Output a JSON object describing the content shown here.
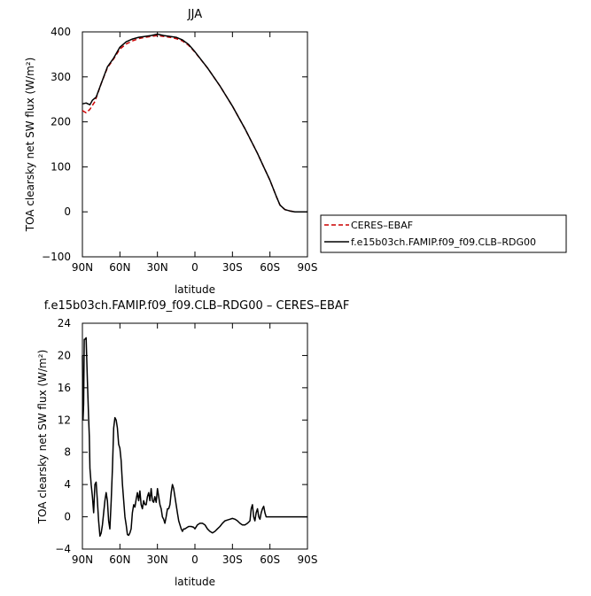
{
  "chart_data": [
    {
      "type": "line",
      "title": "JJA",
      "xlabel": "latitude",
      "ylabel": "TOA clearsky net SW flux (W/m²)",
      "xlim": [
        90,
        -90
      ],
      "ylim": [
        -100,
        400
      ],
      "x_ticks": [
        {
          "value": 90,
          "label": "90N"
        },
        {
          "value": 60,
          "label": "60N"
        },
        {
          "value": 30,
          "label": "30N"
        },
        {
          "value": 0,
          "label": "0"
        },
        {
          "value": -30,
          "label": "30S"
        },
        {
          "value": -60,
          "label": "60S"
        },
        {
          "value": -90,
          "label": "90S"
        }
      ],
      "y_ticks": [
        {
          "value": 400,
          "label": "400"
        },
        {
          "value": 300,
          "label": "300"
        },
        {
          "value": 200,
          "label": "200"
        },
        {
          "value": 100,
          "label": "100"
        },
        {
          "value": 0,
          "label": "0"
        },
        {
          "value": -100,
          "label": "−100"
        }
      ],
      "legend": {
        "placement": "right"
      },
      "series": [
        {
          "name": "CERES–EBAF",
          "color": "#cc0000",
          "dash": true,
          "points": [
            [
              90,
              225
            ],
            [
              87,
              220
            ],
            [
              84,
              228
            ],
            [
              80,
              245
            ],
            [
              75,
              285
            ],
            [
              70,
              320
            ],
            [
              65,
              340
            ],
            [
              60,
              362
            ],
            [
              55,
              373
            ],
            [
              50,
              380
            ],
            [
              45,
              385
            ],
            [
              40,
              388
            ],
            [
              35,
              390
            ],
            [
              30,
              392
            ],
            [
              25,
              390
            ],
            [
              20,
              388
            ],
            [
              15,
              385
            ],
            [
              10,
              380
            ],
            [
              5,
              370
            ],
            [
              0,
              355
            ],
            [
              -10,
              320
            ],
            [
              -20,
              280
            ],
            [
              -30,
              235
            ],
            [
              -40,
              185
            ],
            [
              -50,
              130
            ],
            [
              -55,
              100
            ],
            [
              -60,
              70
            ],
            [
              -65,
              35
            ],
            [
              -68,
              15
            ],
            [
              -72,
              5
            ],
            [
              -76,
              2
            ],
            [
              -80,
              0
            ],
            [
              -90,
              0
            ]
          ]
        },
        {
          "name": "f.e15b03ch.FAMIP.f09_f09.CLB–RDG00",
          "color": "#000000",
          "dash": false,
          "points": [
            [
              90,
              240
            ],
            [
              87,
              242
            ],
            [
              84,
              238
            ],
            [
              82,
              248
            ],
            [
              79,
              255
            ],
            [
              75,
              285
            ],
            [
              70,
              322
            ],
            [
              65,
              342
            ],
            [
              60,
              366
            ],
            [
              55,
              378
            ],
            [
              50,
              384
            ],
            [
              45,
              388
            ],
            [
              40,
              390
            ],
            [
              35,
              392
            ],
            [
              30,
              395
            ],
            [
              25,
              392
            ],
            [
              20,
              390
            ],
            [
              15,
              388
            ],
            [
              10,
              382
            ],
            [
              5,
              372
            ],
            [
              0,
              356
            ],
            [
              -10,
              320
            ],
            [
              -20,
              280
            ],
            [
              -30,
              235
            ],
            [
              -40,
              185
            ],
            [
              -50,
              130
            ],
            [
              -55,
              100
            ],
            [
              -60,
              70
            ],
            [
              -65,
              35
            ],
            [
              -68,
              15
            ],
            [
              -72,
              5
            ],
            [
              -76,
              2
            ],
            [
              -80,
              0
            ],
            [
              -90,
              0
            ]
          ]
        }
      ]
    },
    {
      "type": "line",
      "title": "f.e15b03ch.FAMIP.f09_f09.CLB–RDG00 – CERES–EBAF",
      "xlabel": "latitude",
      "ylabel": "TOA clearsky net SW flux (W/m²)",
      "xlim": [
        90,
        -90
      ],
      "ylim": [
        -4,
        24
      ],
      "x_ticks": [
        {
          "value": 90,
          "label": "90N"
        },
        {
          "value": 60,
          "label": "60N"
        },
        {
          "value": 30,
          "label": "30N"
        },
        {
          "value": 0,
          "label": "0"
        },
        {
          "value": -30,
          "label": "30S"
        },
        {
          "value": -60,
          "label": "60S"
        },
        {
          "value": -90,
          "label": "90S"
        }
      ],
      "y_ticks": [
        {
          "value": 24,
          "label": "24"
        },
        {
          "value": 20,
          "label": "20"
        },
        {
          "value": 16,
          "label": "16"
        },
        {
          "value": 12,
          "label": "12"
        },
        {
          "value": 8,
          "label": "8"
        },
        {
          "value": 4,
          "label": "4"
        },
        {
          "value": 0,
          "label": "0"
        },
        {
          "value": -4,
          "label": "−4"
        }
      ],
      "series": [
        {
          "color": "#000000",
          "points": [
            [
              90,
              20
            ],
            [
              89.5,
              12
            ],
            [
              89,
              14
            ],
            [
              88.5,
              22
            ],
            [
              88,
              22
            ],
            [
              87,
              22.2
            ],
            [
              86,
              17
            ],
            [
              85,
              12
            ],
            [
              84.5,
              10
            ],
            [
              84,
              6
            ],
            [
              83,
              4
            ],
            [
              82,
              2.5
            ],
            [
              81,
              0.5
            ],
            [
              80,
              4
            ],
            [
              79,
              4.3
            ],
            [
              78,
              2
            ],
            [
              77,
              -0.5
            ],
            [
              76,
              -2.4
            ],
            [
              75,
              -2
            ],
            [
              74,
              -1
            ],
            [
              73,
              0.5
            ],
            [
              72,
              2
            ],
            [
              71,
              3
            ],
            [
              70,
              2
            ],
            [
              69,
              -0.5
            ],
            [
              68,
              -1.5
            ],
            [
              67,
              2
            ],
            [
              66,
              6
            ],
            [
              65,
              11
            ],
            [
              64,
              12.3
            ],
            [
              63,
              12
            ],
            [
              62,
              11
            ],
            [
              61,
              9
            ],
            [
              60,
              8.5
            ],
            [
              59,
              7
            ],
            [
              58,
              4
            ],
            [
              57,
              2
            ],
            [
              56,
              0
            ],
            [
              55,
              -1
            ],
            [
              54,
              -2.2
            ],
            [
              53,
              -2.3
            ],
            [
              52,
              -2
            ],
            [
              51,
              -1.5
            ],
            [
              50,
              0.5
            ],
            [
              49,
              1.5
            ],
            [
              48,
              1.2
            ],
            [
              47,
              2.2
            ],
            [
              46,
              3
            ],
            [
              45,
              2
            ],
            [
              44,
              3.2
            ],
            [
              43,
              1.5
            ],
            [
              42,
              1
            ],
            [
              41,
              2
            ],
            [
              40,
              1.5
            ],
            [
              39,
              1.5
            ],
            [
              38,
              2.5
            ],
            [
              37,
              3
            ],
            [
              36,
              2
            ],
            [
              35,
              3.5
            ],
            [
              34,
              2
            ],
            [
              33,
              1.8
            ],
            [
              32,
              2.5
            ],
            [
              31,
              1.8
            ],
            [
              30,
              3.5
            ],
            [
              29,
              2.5
            ],
            [
              28,
              1.5
            ],
            [
              27,
              1
            ],
            [
              26,
              0
            ],
            [
              25,
              -0.3
            ],
            [
              24,
              -0.8
            ],
            [
              23,
              0
            ],
            [
              22,
              1
            ],
            [
              21,
              1
            ],
            [
              20,
              1.5
            ],
            [
              19,
              3
            ],
            [
              18,
              4
            ],
            [
              17,
              3.5
            ],
            [
              16,
              2.5
            ],
            [
              15,
              1.5
            ],
            [
              14,
              0.5
            ],
            [
              13,
              -0.5
            ],
            [
              12,
              -1
            ],
            [
              11,
              -1.5
            ],
            [
              10,
              -1.8
            ],
            [
              9,
              -1.5
            ],
            [
              8,
              -1.5
            ],
            [
              7,
              -1.4
            ],
            [
              6,
              -1.3
            ],
            [
              5,
              -1.2
            ],
            [
              3,
              -1.2
            ],
            [
              1,
              -1.3
            ],
            [
              0,
              -1.5
            ],
            [
              -2,
              -1
            ],
            [
              -4,
              -0.8
            ],
            [
              -6,
              -0.8
            ],
            [
              -8,
              -1
            ],
            [
              -10,
              -1.5
            ],
            [
              -12,
              -1.8
            ],
            [
              -14,
              -2
            ],
            [
              -16,
              -1.8
            ],
            [
              -18,
              -1.5
            ],
            [
              -20,
              -1.2
            ],
            [
              -22,
              -0.8
            ],
            [
              -24,
              -0.5
            ],
            [
              -26,
              -0.4
            ],
            [
              -28,
              -0.3
            ],
            [
              -30,
              -0.2
            ],
            [
              -32,
              -0.3
            ],
            [
              -34,
              -0.5
            ],
            [
              -36,
              -0.8
            ],
            [
              -38,
              -1
            ],
            [
              -40,
              -1
            ],
            [
              -42,
              -0.8
            ],
            [
              -44,
              -0.5
            ],
            [
              -45,
              1
            ],
            [
              -46,
              1.5
            ],
            [
              -47,
              0
            ],
            [
              -48,
              -0.5
            ],
            [
              -49,
              0.5
            ],
            [
              -50,
              1
            ],
            [
              -51,
              0
            ],
            [
              -52,
              -0.3
            ],
            [
              -53,
              0.5
            ],
            [
              -54,
              1
            ],
            [
              -55,
              1.3
            ],
            [
              -56,
              0.5
            ],
            [
              -57,
              0
            ],
            [
              -58,
              0
            ],
            [
              -60,
              0
            ],
            [
              -65,
              0
            ],
            [
              -70,
              0
            ],
            [
              -80,
              0
            ],
            [
              -90,
              0
            ]
          ]
        }
      ]
    }
  ]
}
